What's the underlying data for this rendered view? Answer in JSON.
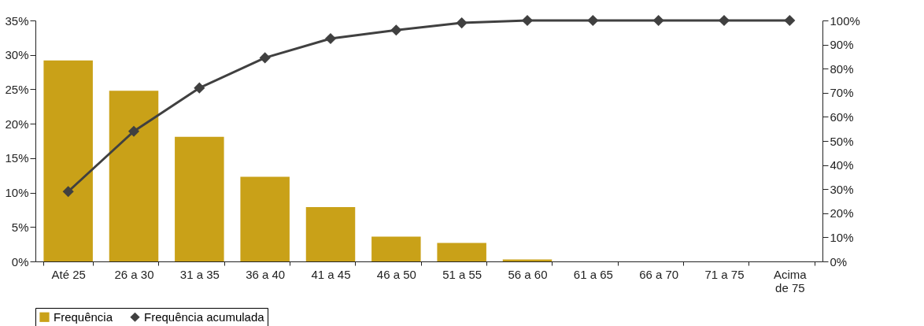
{
  "chart_data": {
    "type": "bar",
    "categories": [
      "Até 25",
      "26 a 30",
      "31 a 35",
      "36 a 40",
      "41 a 45",
      "46 a 50",
      "51 a 55",
      "56 a 60",
      "61 a 65",
      "66 a 70",
      "71 a 75",
      "Acima de 75"
    ],
    "series": [
      {
        "name": "Frequência",
        "color": "#c9a118",
        "values": [
          29.2,
          24.8,
          18.1,
          12.3,
          7.9,
          3.6,
          2.7,
          0.3,
          0,
          0,
          0,
          0
        ]
      },
      {
        "name": "Frequência acumulada",
        "type": "line",
        "axis": "y2",
        "color": "#404040",
        "marker": "diamond",
        "values": [
          29,
          54,
          72,
          84.5,
          92.5,
          96,
          99,
          100,
          100,
          100,
          100,
          100
        ]
      }
    ],
    "ylim": [
      0,
      35
    ],
    "yticks": [
      {
        "value": 0,
        "label": "0%"
      },
      {
        "value": 5,
        "label": "5%"
      },
      {
        "value": 10,
        "label": "10%"
      },
      {
        "value": 15,
        "label": "15%"
      },
      {
        "value": 20,
        "label": "20%"
      },
      {
        "value": 25,
        "label": "25%"
      },
      {
        "value": 30,
        "label": "30%"
      },
      {
        "value": 35,
        "label": "35%"
      }
    ],
    "y2lim": [
      0,
      100
    ],
    "y2ticks": [
      {
        "value": 0,
        "label": "0%"
      },
      {
        "value": 10,
        "label": "10%"
      },
      {
        "value": 20,
        "label": "20%"
      },
      {
        "value": 30,
        "label": "30%"
      },
      {
        "value": 40,
        "label": "40%"
      },
      {
        "value": 50,
        "label": "50%"
      },
      {
        "value": 60,
        "label": "60%"
      },
      {
        "value": 70,
        "label": "70%"
      },
      {
        "value": 80,
        "label": "80%"
      },
      {
        "value": 90,
        "label": "90%"
      },
      {
        "value": 100,
        "label": "100%"
      }
    ],
    "legend": "bottom",
    "grid": false
  }
}
